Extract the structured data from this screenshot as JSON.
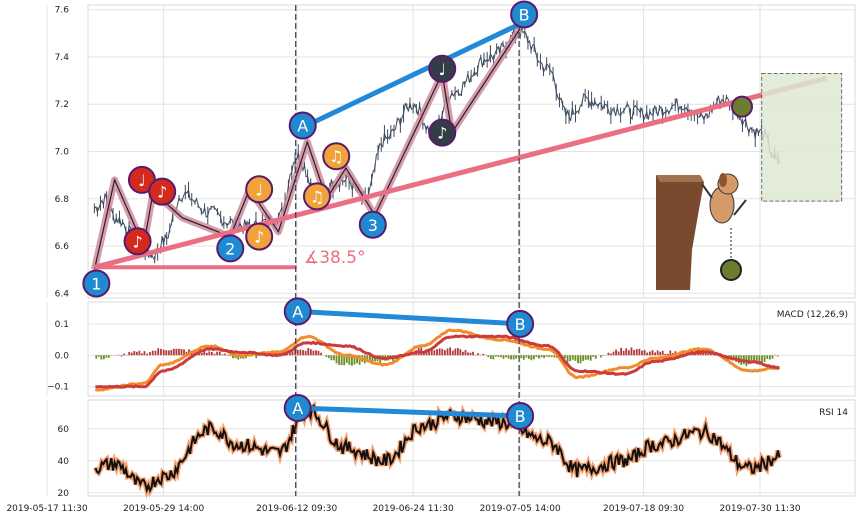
{
  "chart_data": [
    {
      "type": "line",
      "panel": "price",
      "yticks": [
        6.4,
        6.6,
        6.8,
        7.0,
        7.2,
        7.4,
        7.6
      ],
      "ylim": [
        6.38,
        7.62
      ],
      "grid": true,
      "x": [
        "2019-05-22 09:30",
        "2019-05-23",
        "2019-05-24",
        "2019-05-27",
        "2019-05-28",
        "2019-05-29 14:00",
        "2019-05-31",
        "2019-06-03",
        "2019-06-05",
        "2019-06-07",
        "2019-06-10",
        "2019-06-12 09:30",
        "2019-06-14",
        "2019-06-17",
        "2019-06-19",
        "2019-06-21",
        "2019-06-24 11:30",
        "2019-06-26",
        "2019-06-28",
        "2019-07-02",
        "2019-07-05 14:00",
        "2019-07-08",
        "2019-07-10",
        "2019-07-12",
        "2019-07-15",
        "2019-07-18 09:30",
        "2019-07-22",
        "2019-07-24",
        "2019-07-26",
        "2019-07-30 11:30",
        "2019-08-01"
      ],
      "values": [
        6.76,
        6.8,
        6.72,
        6.6,
        6.56,
        6.62,
        6.82,
        6.74,
        6.7,
        6.68,
        6.72,
        6.98,
        6.84,
        6.88,
        6.8,
        7.05,
        7.2,
        7.08,
        7.25,
        7.4,
        7.5,
        7.35,
        7.15,
        7.22,
        7.18,
        7.16,
        7.2,
        7.14,
        7.22,
        7.08,
        6.95
      ],
      "wave_labels": [
        "1",
        "2",
        "3",
        "A",
        "B",
        "♪",
        "♩",
        "♫"
      ],
      "angle_label": "∡38.5°"
    },
    {
      "type": "line",
      "panel": "macd",
      "label": "MACD (12,26,9)",
      "yticks": [
        -0.1,
        0.0,
        0.1
      ],
      "ytick_labels": [
        "−0.1",
        "0.0",
        "0.1"
      ],
      "ylim": [
        -0.13,
        0.17
      ],
      "x": [
        "2019-05-22",
        "2019-05-27",
        "2019-05-29",
        "2019-06-03",
        "2019-06-06",
        "2019-06-10",
        "2019-06-13",
        "2019-06-17",
        "2019-06-21",
        "2019-06-25",
        "2019-06-28",
        "2019-07-03",
        "2019-07-08",
        "2019-07-11",
        "2019-07-16",
        "2019-07-19",
        "2019-07-24",
        "2019-07-29",
        "2019-08-01"
      ],
      "series": [
        {
          "values": [
            -0.11,
            -0.09,
            -0.03,
            0.03,
            0.0,
            0.01,
            0.06,
            0.0,
            -0.03,
            0.03,
            0.08,
            0.05,
            0.02,
            -0.07,
            -0.04,
            -0.01,
            0.02,
            -0.05,
            -0.04
          ]
        },
        {
          "values": [
            -0.1,
            -0.1,
            -0.05,
            0.02,
            0.01,
            0.0,
            0.04,
            0.03,
            -0.01,
            0.01,
            0.06,
            0.06,
            0.03,
            -0.05,
            -0.06,
            -0.02,
            0.01,
            -0.02,
            -0.04
          ]
        }
      ],
      "divergence_labels": [
        "A",
        "B"
      ]
    },
    {
      "type": "line",
      "panel": "rsi",
      "label": "RSI 14",
      "yticks": [
        20,
        40,
        60
      ],
      "ylim": [
        18,
        78
      ],
      "x": [
        "2019-05-22",
        "2019-05-24",
        "2019-05-27",
        "2019-05-29",
        "2019-06-03",
        "2019-06-06",
        "2019-06-10",
        "2019-06-13",
        "2019-06-17",
        "2019-06-21",
        "2019-06-25",
        "2019-06-28",
        "2019-07-03",
        "2019-07-08",
        "2019-07-11",
        "2019-07-16",
        "2019-07-19",
        "2019-07-24",
        "2019-07-29",
        "2019-08-01"
      ],
      "values": [
        36,
        38,
        24,
        30,
        60,
        50,
        45,
        72,
        48,
        40,
        62,
        68,
        64,
        52,
        34,
        40,
        50,
        58,
        35,
        42
      ],
      "divergence_labels": [
        "A",
        "B"
      ]
    }
  ],
  "xticks": [
    "2019-05-17 11:30",
    "2019-05-29 14:00",
    "2019-06-12 09:30",
    "2019-06-24 11:30",
    "2019-07-05 14:00",
    "2019-07-18 09:30",
    "2019-07-30 11:30"
  ],
  "colors": {
    "price": "#3b4a5e",
    "wave": "#d08aa0",
    "support": "#ea6f82",
    "channel": "#2289d8",
    "macd_fast": "#f28b2a",
    "macd_slow": "#cc3b3b",
    "hist_pos": "#b33a3a",
    "hist_neg": "#6b8e23",
    "rsi": "#111111",
    "rsi_glow": "#f4a070",
    "box": "#dfe8d3"
  }
}
